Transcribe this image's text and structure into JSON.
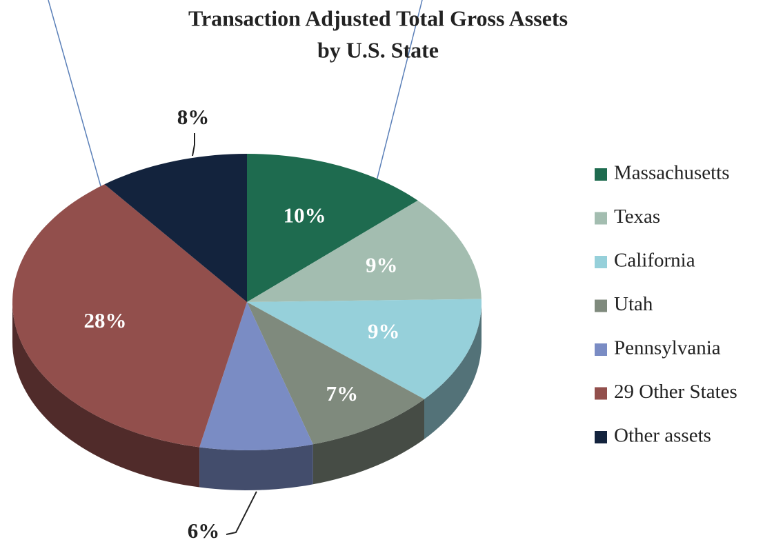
{
  "chart_data": {
    "type": "pie",
    "title_lines": [
      "Transaction Adjusted Total Gross Assets",
      "by U.S. State"
    ],
    "categories": [
      "Massachusetts",
      "Texas",
      "California",
      "Utah",
      "Pennsylvania",
      "29 Other States",
      "Other assets"
    ],
    "values": [
      10,
      9,
      9,
      7,
      6,
      28,
      8
    ],
    "value_labels": [
      "10%",
      "9%",
      "9%",
      "7%",
      "6%",
      "28%",
      "8%"
    ],
    "colors": [
      "#1e6b4f",
      "#a3bdb0",
      "#96d0da",
      "#7f8a7d",
      "#7a8cc4",
      "#924f4c",
      "#13233d"
    ],
    "legend": "right"
  }
}
